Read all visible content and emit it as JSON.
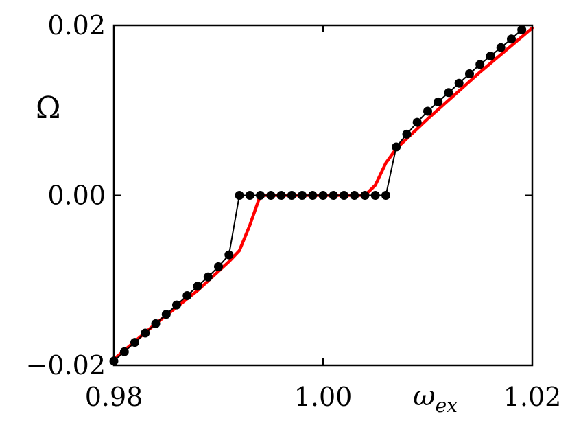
{
  "chart_data": {
    "type": "line",
    "title": "",
    "xlabel": "ω",
    "xlabel_subscript": "ex",
    "ylabel": "Ω",
    "xlim": [
      0.98,
      1.02
    ],
    "ylim": [
      -0.02,
      0.02
    ],
    "x_ticks": [
      "0.98",
      "1.00",
      "1.02"
    ],
    "y_ticks": [
      "0.02",
      "0.00",
      "−0.02"
    ],
    "x_tick_values": [
      0.98,
      1.0,
      1.02
    ],
    "y_tick_values": [
      0.02,
      0.0,
      -0.02
    ],
    "grid": false,
    "legend": "none",
    "series": [
      {
        "style": "line",
        "color": "#ff0000",
        "x": [
          0.98,
          0.984,
          0.988,
          0.991,
          0.992,
          0.993,
          0.994,
          0.995,
          1.0,
          1.004,
          1.005,
          1.006,
          1.007,
          1.01,
          1.015,
          1.02
        ],
        "y": [
          -0.0193,
          -0.0151,
          -0.0112,
          -0.0078,
          -0.0065,
          -0.0035,
          0.0,
          0.0,
          0.0,
          0.0,
          0.0012,
          0.0038,
          0.0055,
          0.009,
          0.0145,
          0.0197
        ]
      },
      {
        "style": "line+markers",
        "color": "#000000",
        "x": [
          0.98,
          0.981,
          0.982,
          0.983,
          0.984,
          0.985,
          0.986,
          0.987,
          0.988,
          0.989,
          0.99,
          0.991,
          0.992,
          0.993,
          0.994,
          0.995,
          0.996,
          0.997,
          0.998,
          0.999,
          1.0,
          1.001,
          1.002,
          1.003,
          1.004,
          1.005,
          1.006,
          1.007,
          1.008,
          1.009,
          1.01,
          1.011,
          1.012,
          1.013,
          1.014,
          1.015,
          1.016,
          1.017,
          1.018,
          1.019
        ],
        "y": [
          -0.0195,
          -0.0184,
          -0.0173,
          -0.0162,
          -0.0151,
          -0.014,
          -0.0129,
          -0.0118,
          -0.0107,
          -0.0096,
          -0.0084,
          -0.007,
          0.0,
          0.0,
          0.0,
          0.0,
          0.0,
          0.0,
          0.0,
          0.0,
          0.0,
          0.0,
          0.0,
          0.0,
          0.0,
          0.0,
          0.0,
          0.0057,
          0.0072,
          0.0086,
          0.0099,
          0.011,
          0.0121,
          0.0132,
          0.0143,
          0.0154,
          0.0164,
          0.0174,
          0.0184,
          0.0195
        ]
      }
    ]
  }
}
